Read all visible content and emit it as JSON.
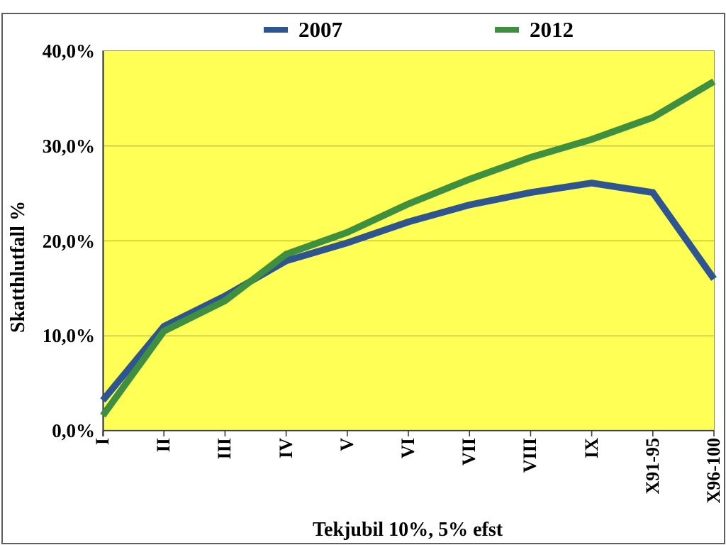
{
  "chart_data": {
    "type": "line",
    "categories": [
      "I",
      "II",
      "III",
      "IV",
      "V",
      "VI",
      "VII",
      "VIII",
      "IX",
      "X91-95",
      "X96-100"
    ],
    "series": [
      {
        "name": "2007",
        "color": "#2E558F",
        "values": [
          3.2,
          11.0,
          14.2,
          17.9,
          19.8,
          22.0,
          23.8,
          25.1,
          26.1,
          25.1,
          16.0
        ]
      },
      {
        "name": "2012",
        "color": "#3F8F41",
        "values": [
          1.6,
          10.5,
          13.7,
          18.6,
          20.9,
          23.9,
          26.5,
          28.8,
          30.7,
          33.0,
          36.8
        ]
      }
    ],
    "title": "",
    "xlabel": "Tekjubil 10%, 5% efst",
    "ylabel": "Skatthlutfall %",
    "ylim": [
      0,
      40
    ],
    "yticks": {
      "values": [
        0,
        10,
        20,
        30,
        40
      ],
      "labels": [
        "0,0%",
        "10,0%",
        "20,0%",
        "30,0%",
        "40,0%"
      ]
    },
    "legend_position": "top",
    "grid": "horizontal-major",
    "colors": {
      "plot_background": "#FFFF55",
      "gridline": "#9b9b9b",
      "axis": "#3a3a3a",
      "frame_border": "#5f5f5f",
      "text": "#000000"
    }
  }
}
